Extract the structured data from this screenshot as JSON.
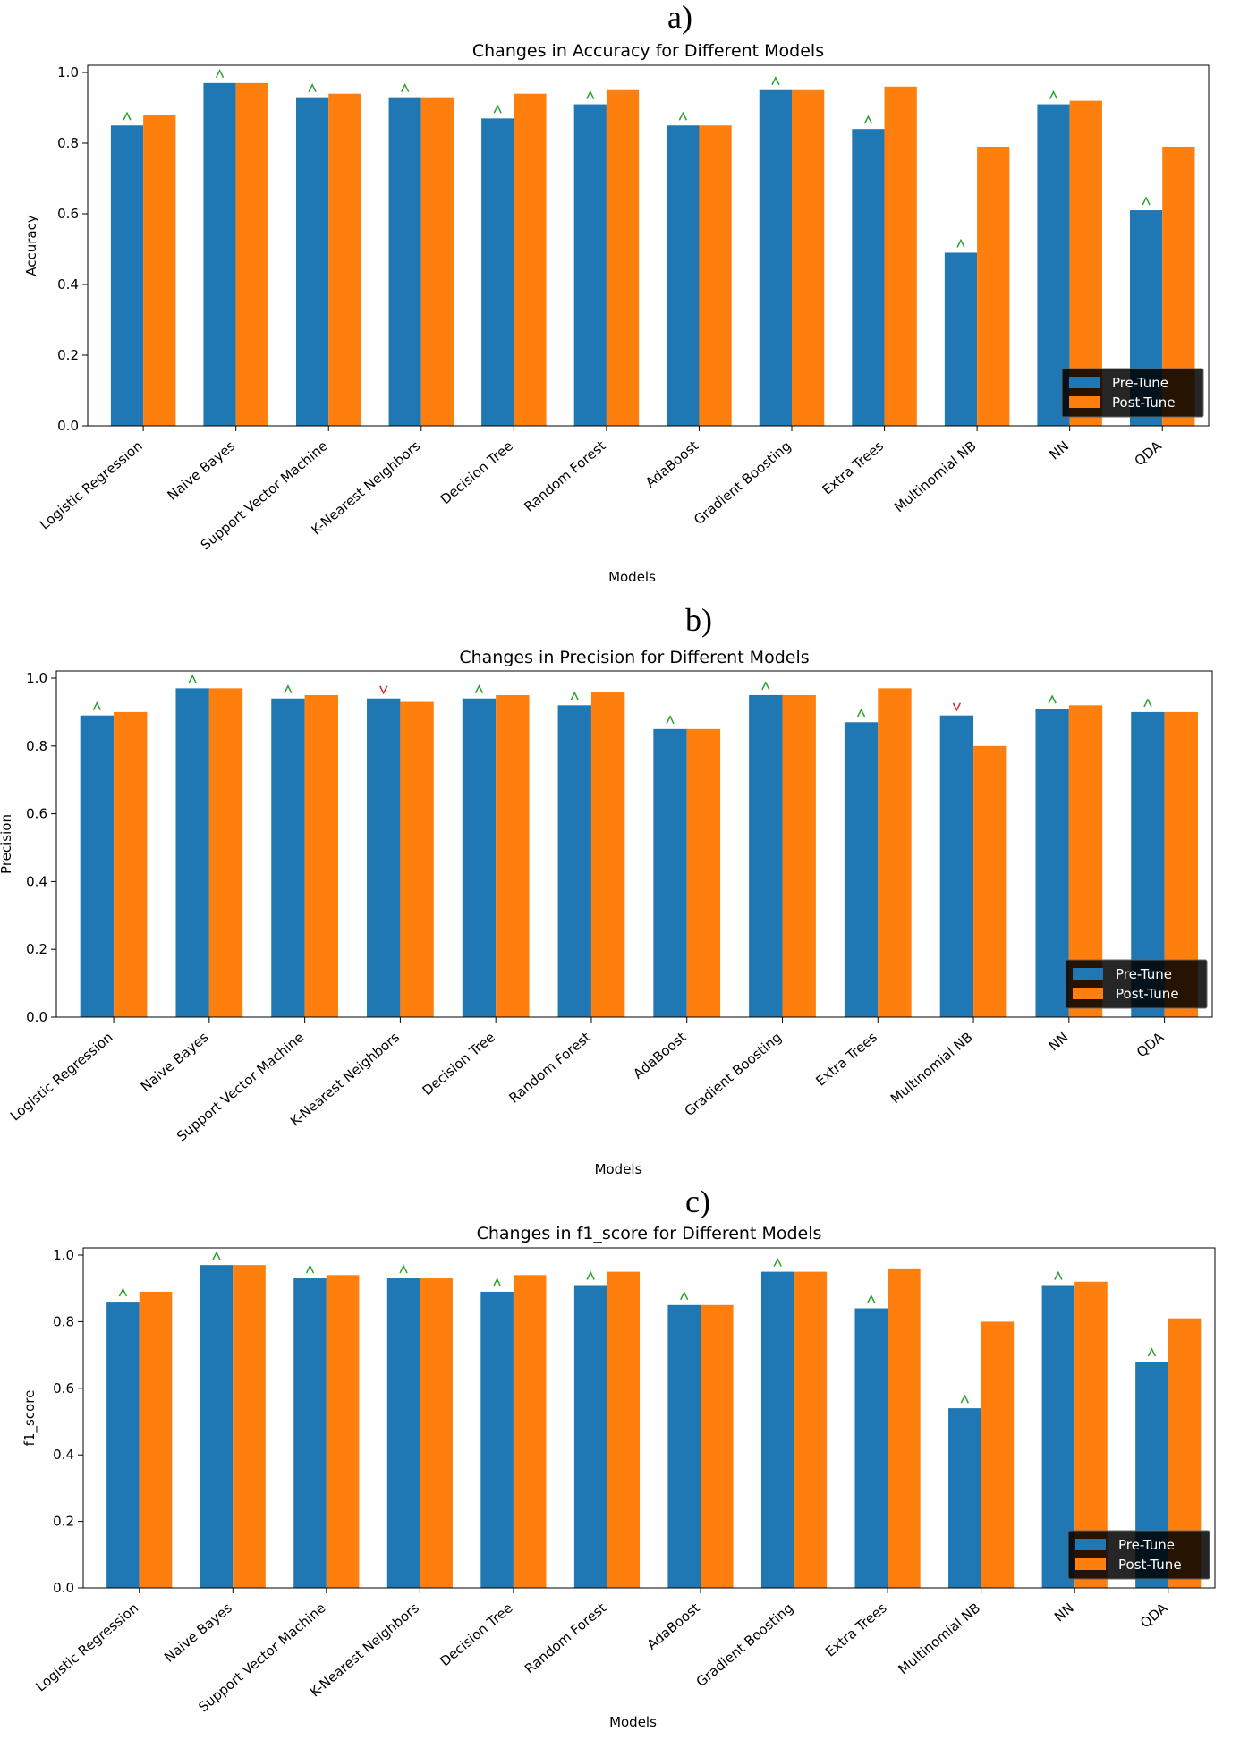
{
  "colors": {
    "pre": "#1f77b4",
    "post": "#ff7f0e",
    "up_marker": "#2ca02c",
    "down_marker": "#d62728"
  },
  "categories": [
    "Logistic Regression",
    "Naive Bayes",
    "Support Vector Machine",
    "K-Nearest Neighbors",
    "Decision Tree",
    "Random Forest",
    "AdaBoost",
    "Gradient Boosting",
    "Extra Trees",
    "Multinomial NB",
    "NN",
    "QDA"
  ],
  "chart_data": [
    {
      "panel_label": "a)",
      "type": "bar",
      "title": "Changes in Accuracy for Different Models",
      "xlabel": "Models",
      "ylabel": "Accuracy",
      "ylim": [
        0,
        1.0
      ],
      "yticks": [
        "0.0",
        "0.2",
        "0.4",
        "0.6",
        "0.8",
        "1.0"
      ],
      "legend": "lower-right",
      "series": [
        {
          "name": "Pre-Tune",
          "values": [
            0.85,
            0.97,
            0.93,
            0.93,
            0.87,
            0.91,
            0.85,
            0.95,
            0.84,
            0.49,
            0.91,
            0.61
          ]
        },
        {
          "name": "Post-Tune",
          "values": [
            0.88,
            0.97,
            0.94,
            0.93,
            0.94,
            0.95,
            0.85,
            0.95,
            0.96,
            0.79,
            0.92,
            0.79
          ]
        }
      ],
      "markers": [
        "^",
        "^",
        "^",
        "^",
        "^",
        "^",
        "^",
        "^",
        "^",
        "^",
        "^",
        "^"
      ]
    },
    {
      "panel_label": "b)",
      "type": "bar",
      "title": "Changes in Precision for Different Models",
      "xlabel": "Models",
      "ylabel": "Precision",
      "ylim": [
        0,
        1.0
      ],
      "yticks": [
        "0.0",
        "0.2",
        "0.4",
        "0.6",
        "0.8",
        "1.0"
      ],
      "legend": "lower-right",
      "series": [
        {
          "name": "Pre-Tune",
          "values": [
            0.89,
            0.97,
            0.94,
            0.94,
            0.94,
            0.92,
            0.85,
            0.95,
            0.87,
            0.89,
            0.91,
            0.9
          ]
        },
        {
          "name": "Post-Tune",
          "values": [
            0.9,
            0.97,
            0.95,
            0.93,
            0.95,
            0.96,
            0.85,
            0.95,
            0.97,
            0.8,
            0.92,
            0.9
          ]
        }
      ],
      "markers": [
        "^",
        "^",
        "^",
        "v",
        "^",
        "^",
        "^",
        "^",
        "^",
        "v",
        "^",
        "^"
      ]
    },
    {
      "panel_label": "c)",
      "type": "bar",
      "title": "Changes in f1_score for Different Models",
      "xlabel": "Models",
      "ylabel": "f1_score",
      "ylim": [
        0,
        1.0
      ],
      "yticks": [
        "0.0",
        "0.2",
        "0.4",
        "0.6",
        "0.8",
        "1.0"
      ],
      "legend": "lower-right",
      "series": [
        {
          "name": "Pre-Tune",
          "values": [
            0.86,
            0.97,
            0.93,
            0.93,
            0.89,
            0.91,
            0.85,
            0.95,
            0.84,
            0.54,
            0.91,
            0.68
          ]
        },
        {
          "name": "Post-Tune",
          "values": [
            0.89,
            0.97,
            0.94,
            0.93,
            0.94,
            0.95,
            0.85,
            0.95,
            0.96,
            0.8,
            0.92,
            0.81
          ]
        }
      ],
      "markers": [
        "^",
        "^",
        "^",
        "^",
        "^",
        "^",
        "^",
        "^",
        "^",
        "^",
        "^",
        "^"
      ]
    }
  ]
}
